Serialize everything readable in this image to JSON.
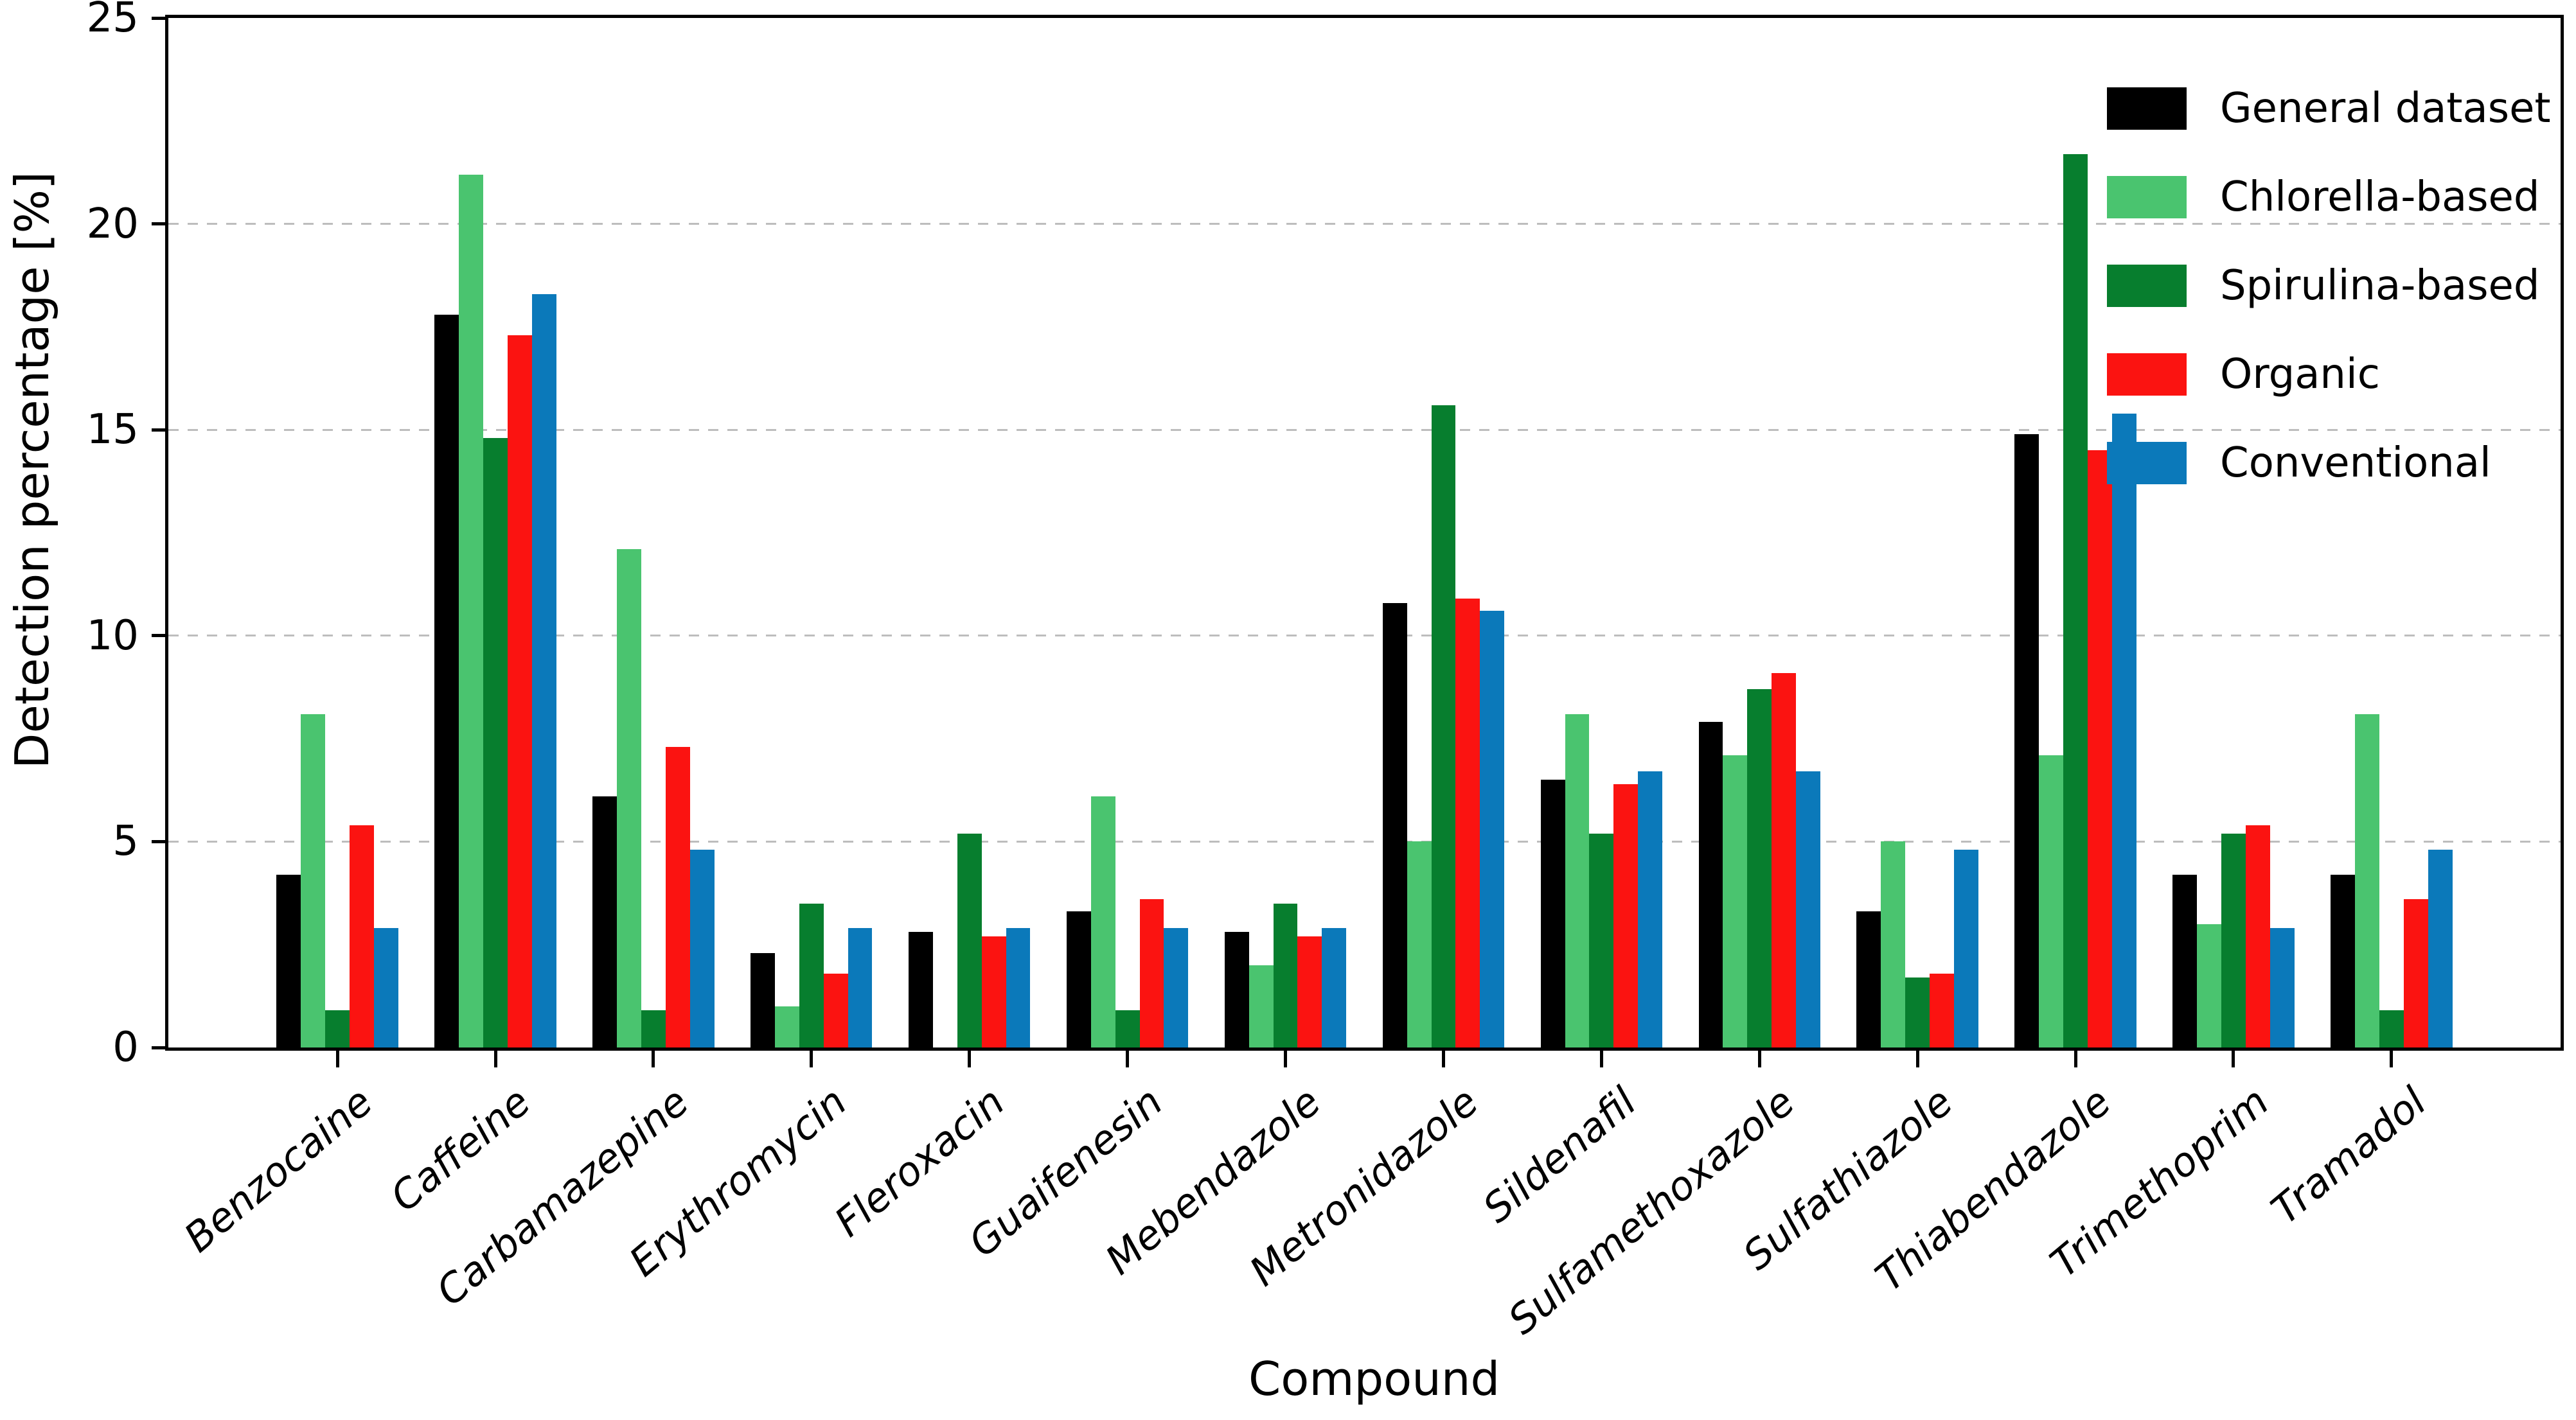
{
  "axes": {
    "y_label": "Detection percentage [%]",
    "x_label": "Compound",
    "y_ticks": [
      0,
      5,
      10,
      15,
      20,
      25
    ],
    "grid_values": [
      5,
      10,
      15,
      20
    ],
    "grid_color": "#bdbdbd",
    "spine_color": "#000000",
    "background": "#ffffff"
  },
  "chart_data": {
    "type": "bar",
    "title": "",
    "xlabel": "Compound",
    "ylabel": "Detection percentage [%]",
    "ylim": [
      0,
      25
    ],
    "grid": "horizontal dashed at 5,10,15,20",
    "legend_position": "upper right",
    "categories": [
      "Benzocaine",
      "Caffeine",
      "Carbamazepine",
      "Erythromycin",
      "Fleroxacin",
      "Guaifenesin",
      "Mebendazole",
      "Metronidazole",
      "Sildenafil",
      "Sulfamethoxazole",
      "Sulfathiazole",
      "Thiabendazole",
      "Trimethoprim",
      "Tramadol"
    ],
    "series": [
      {
        "name": "General dataset",
        "color": "#000000",
        "values": [
          4.2,
          17.8,
          6.1,
          2.3,
          2.8,
          3.3,
          2.8,
          10.8,
          6.5,
          7.9,
          3.3,
          14.9,
          4.2,
          4.2
        ]
      },
      {
        "name": "Chlorella-based",
        "color": "#4ac46f",
        "values": [
          8.1,
          21.2,
          12.1,
          1.0,
          0,
          6.1,
          2.0,
          5.0,
          8.1,
          7.1,
          5.0,
          7.1,
          3.0,
          8.1
        ]
      },
      {
        "name": "Spirulina-based",
        "color": "#077e2e",
        "values": [
          0.9,
          14.8,
          0.9,
          3.5,
          5.2,
          0.9,
          3.5,
          15.6,
          5.2,
          8.7,
          1.7,
          21.7,
          5.2,
          0.9
        ]
      },
      {
        "name": "Organic",
        "color": "#fb1311",
        "values": [
          5.4,
          17.3,
          7.3,
          1.8,
          2.7,
          3.6,
          2.7,
          10.9,
          6.4,
          9.1,
          1.8,
          14.5,
          5.4,
          3.6
        ]
      },
      {
        "name": "Conventional",
        "color": "#0b79ba",
        "values": [
          2.9,
          18.3,
          4.8,
          2.9,
          2.9,
          2.9,
          2.9,
          10.6,
          6.7,
          6.7,
          4.8,
          15.4,
          2.9,
          4.8
        ]
      }
    ]
  }
}
